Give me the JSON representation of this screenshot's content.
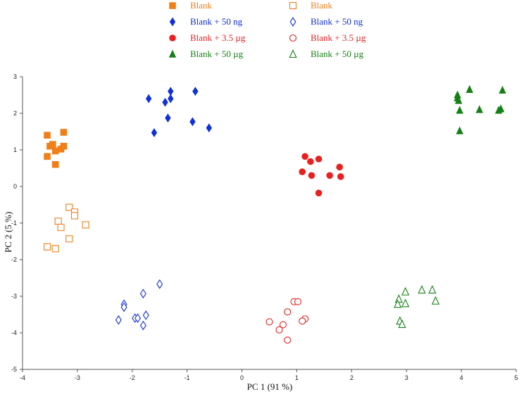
{
  "chart_data": {
    "type": "scatter",
    "title": "",
    "xlabel": "PC 1  (91 %)",
    "ylabel": "PC 2  (5 %)",
    "xlim": [
      -4,
      5
    ],
    "ylim": [
      -5,
      3
    ],
    "xticks": [
      -4,
      -3,
      -2,
      -1,
      0,
      1,
      2,
      3,
      4,
      5
    ],
    "yticks": [
      3,
      2,
      1,
      0,
      -1,
      -2,
      -3,
      -4,
      -5
    ],
    "grid": false,
    "legend_position": "top",
    "series": [
      {
        "name": "Blank",
        "marker": "square",
        "filled": true,
        "color": "#f07f1a",
        "x": [
          -3.55,
          -3.25,
          -3.5,
          -3.45,
          -3.4,
          -3.3,
          -3.25,
          -3.55,
          -3.4
        ],
        "y": [
          1.4,
          1.48,
          1.1,
          1.15,
          0.97,
          1.02,
          1.1,
          0.82,
          0.6
        ]
      },
      {
        "name": "Blank + 50 ng",
        "marker": "diamond",
        "filled": true,
        "color": "#1030d8",
        "x": [
          -1.7,
          -1.3,
          -0.85,
          -1.4,
          -1.3,
          -1.35,
          -0.9,
          -0.6,
          -1.6
        ],
        "y": [
          2.4,
          2.6,
          2.6,
          2.3,
          2.4,
          1.87,
          1.77,
          1.6,
          1.47
        ]
      },
      {
        "name": "Blank + 3.5 µg",
        "marker": "circle",
        "filled": true,
        "color": "#e82020",
        "x": [
          1.15,
          1.4,
          1.25,
          1.1,
          1.78,
          1.6,
          1.8,
          1.27,
          1.4
        ],
        "y": [
          0.82,
          0.75,
          0.68,
          0.4,
          0.53,
          0.3,
          0.27,
          0.3,
          -0.18
        ]
      },
      {
        "name": "Blank + 50 µg",
        "marker": "triangle",
        "filled": true,
        "color": "#158015",
        "x": [
          4.15,
          3.93,
          3.95,
          4.75,
          3.93,
          3.97,
          4.33,
          4.68,
          4.72,
          3.97
        ],
        "y": [
          2.65,
          2.5,
          2.35,
          2.63,
          2.42,
          2.08,
          2.1,
          2.08,
          2.12,
          1.52
        ]
      },
      {
        "name": "Blank",
        "marker": "square",
        "filled": false,
        "color": "#f07f1a",
        "x": [
          -3.15,
          -3.05,
          -3.05,
          -2.85,
          -3.35,
          -3.3,
          -3.15,
          -3.55,
          -3.4
        ],
        "y": [
          -0.57,
          -0.7,
          -0.8,
          -1.05,
          -0.95,
          -1.12,
          -1.43,
          -1.65,
          -1.7
        ]
      },
      {
        "name": "Blank + 50 ng",
        "marker": "diamond",
        "filled": false,
        "color": "#1030d8",
        "x": [
          -1.5,
          -1.8,
          -2.15,
          -2.15,
          -1.75,
          -1.95,
          -2.25,
          -1.9,
          -1.8
        ],
        "y": [
          -2.67,
          -2.93,
          -3.22,
          -3.3,
          -3.52,
          -3.6,
          -3.65,
          -3.6,
          -3.8
        ]
      },
      {
        "name": "Blank + 3.5 µg",
        "marker": "circle",
        "filled": false,
        "color": "#e82020",
        "x": [
          0.95,
          1.02,
          0.83,
          0.5,
          1.15,
          1.1,
          0.75,
          0.68,
          0.83
        ],
        "y": [
          -3.15,
          -3.15,
          -3.43,
          -3.7,
          -3.62,
          -3.68,
          -3.78,
          -3.92,
          -4.2
        ]
      },
      {
        "name": "Blank + 50 µg",
        "marker": "triangle",
        "filled": false,
        "color": "#158015",
        "x": [
          3.28,
          3.47,
          2.98,
          2.86,
          3.53,
          2.84,
          2.98,
          2.88,
          2.92
        ],
        "y": [
          -2.83,
          -2.83,
          -2.88,
          -3.08,
          -3.13,
          -3.22,
          -3.2,
          -3.68,
          -3.77
        ]
      }
    ]
  }
}
